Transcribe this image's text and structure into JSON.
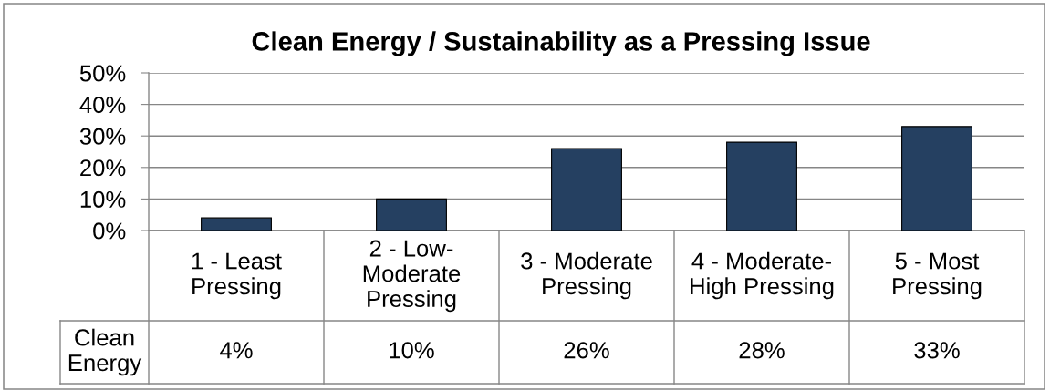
{
  "chart_data": {
    "type": "bar",
    "title": "Clean Energy / Sustainability as a Pressing Issue",
    "categories": [
      "1 - Least Pressing",
      "2 - Low-Moderate Pressing",
      "3 - Moderate Pressing",
      "4 - Moderate-High Pressing",
      "5 - Most Pressing"
    ],
    "series": [
      {
        "name": "Clean Energy",
        "color": "#254061",
        "values": [
          4,
          10,
          26,
          28,
          33
        ],
        "value_labels": [
          "4%",
          "10%",
          "26%",
          "28%",
          "33%"
        ]
      }
    ],
    "ylim": [
      0,
      50
    ],
    "yticks": [
      {
        "value": 0,
        "label": "0%"
      },
      {
        "value": 10,
        "label": "10%"
      },
      {
        "value": 20,
        "label": "20%"
      },
      {
        "value": 30,
        "label": "30%"
      },
      {
        "value": 40,
        "label": "40%"
      },
      {
        "value": 50,
        "label": "50%"
      }
    ],
    "grid": "y"
  }
}
